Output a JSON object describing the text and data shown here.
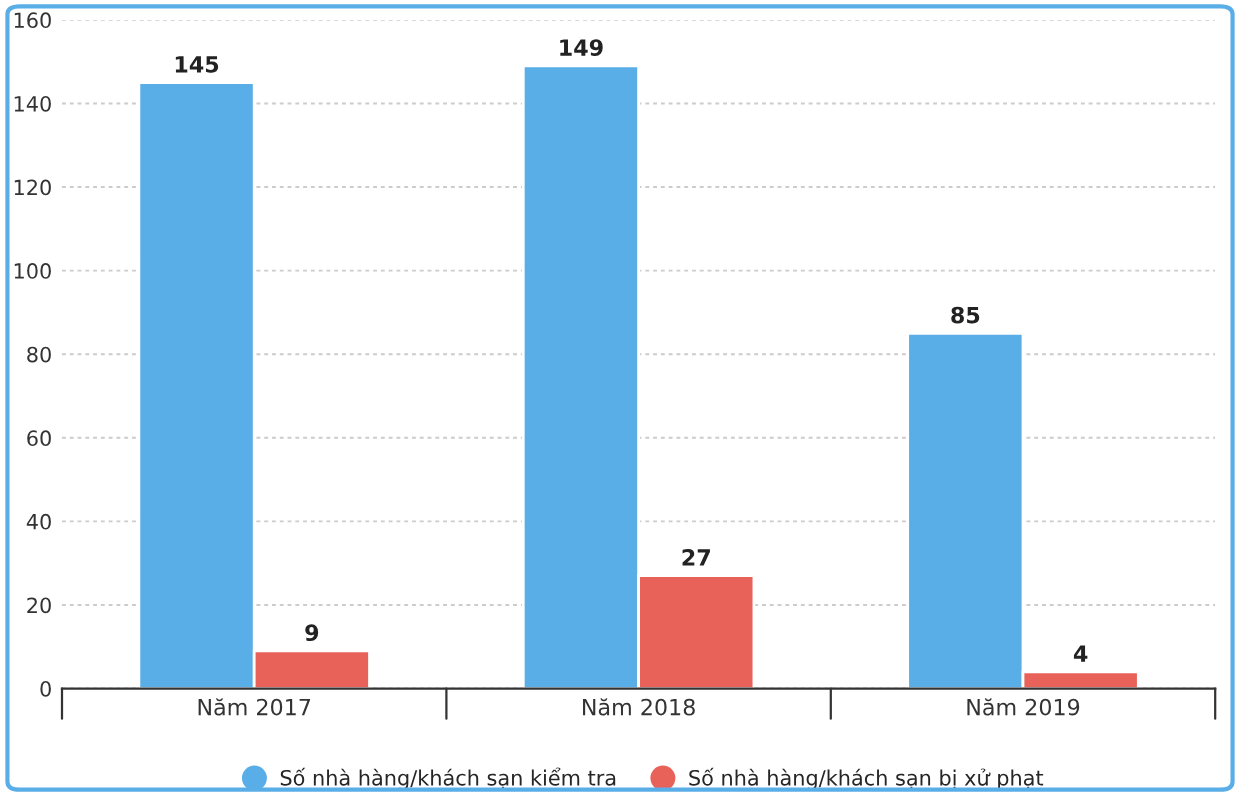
{
  "chart_data": {
    "type": "bar",
    "categories": [
      "Năm 2017",
      "Năm 2018",
      "Năm 2019"
    ],
    "series": [
      {
        "name": "Số nhà hàng/khách sạn kiểm tra",
        "color": "#5aaee8",
        "values": [
          145,
          149,
          85
        ]
      },
      {
        "name": "Số nhà hàng/khách sạn bị xử phạt",
        "color": "#e8625a",
        "values": [
          9,
          27,
          4
        ]
      }
    ],
    "ylim": [
      0,
      160
    ],
    "yticks": [
      0,
      20,
      40,
      60,
      80,
      100,
      120,
      140,
      160
    ],
    "grid": "y",
    "legend": "bottom",
    "data_labels": true
  }
}
